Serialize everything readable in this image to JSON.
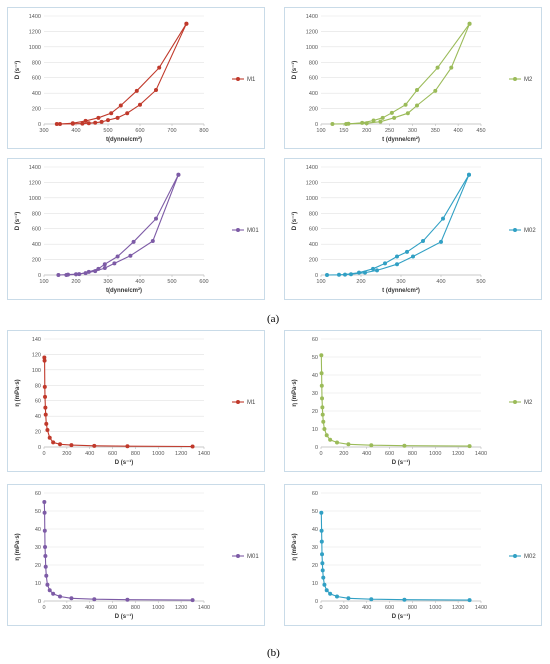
{
  "figure": {
    "label_a": "(a)",
    "label_b": "(b)"
  },
  "chart_data": [
    {
      "type": "line",
      "color": "#c0392b",
      "xlabel": "t(dynne/cm²)",
      "ylabel": "D (s⁻¹)",
      "xlim": [
        300,
        800
      ],
      "ylim": [
        0,
        1400
      ],
      "xticks": [
        300,
        400,
        500,
        600,
        700,
        800
      ],
      "yticks": [
        0,
        200,
        400,
        600,
        800,
        1000,
        1200,
        1400
      ],
      "grid": true,
      "legend": "right",
      "series": [
        {
          "name": "M1",
          "x": [
            340,
            390,
            420,
            440,
            460,
            480,
            500,
            530,
            560,
            600,
            650,
            745
          ],
          "y": [
            0,
            3,
            5,
            10,
            17,
            27,
            50,
            80,
            140,
            250,
            440,
            1300
          ]
        },
        {
          "x": [
            745,
            660,
            590,
            540,
            510,
            470,
            430,
            390,
            350
          ],
          "y": [
            1300,
            730,
            430,
            240,
            140,
            80,
            40,
            10,
            0
          ]
        }
      ]
    },
    {
      "type": "line",
      "color": "#9bbb59",
      "xlabel": "t (dynne/cm²)",
      "ylabel": "D (s⁻¹)",
      "xlim": [
        100,
        450
      ],
      "ylim": [
        0,
        1400
      ],
      "xticks": [
        100,
        150,
        200,
        250,
        300,
        350,
        400,
        450
      ],
      "yticks": [
        0,
        200,
        400,
        600,
        800,
        1000,
        1200,
        1400
      ],
      "grid": true,
      "legend": "right",
      "series": [
        {
          "name": "M2",
          "x": [
            125,
            160,
            200,
            230,
            260,
            290,
            310,
            350,
            385,
            425
          ],
          "y": [
            0,
            3,
            10,
            30,
            80,
            140,
            240,
            430,
            730,
            1300
          ]
        },
        {
          "x": [
            425,
            355,
            310,
            285,
            255,
            235,
            215,
            190,
            155
          ],
          "y": [
            1300,
            730,
            440,
            250,
            145,
            80,
            45,
            15,
            0
          ]
        }
      ]
    },
    {
      "type": "line",
      "color": "#7d5ba6",
      "xlabel": "t(dynne/cm²)",
      "ylabel": "D (s⁻¹)",
      "xlim": [
        100,
        600
      ],
      "ylim": [
        0,
        1400
      ],
      "xticks": [
        100,
        200,
        300,
        400,
        500,
        600
      ],
      "yticks": [
        0,
        200,
        400,
        600,
        800,
        1000,
        1200,
        1400
      ],
      "grid": true,
      "legend": "right",
      "series": [
        {
          "name": "M01",
          "x": [
            145,
            175,
            200,
            230,
            260,
            290,
            320,
            370,
            440,
            520
          ],
          "y": [
            0,
            5,
            10,
            25,
            50,
            90,
            150,
            250,
            440,
            1300
          ]
        },
        {
          "x": [
            520,
            450,
            380,
            330,
            290,
            270,
            240,
            210,
            170
          ],
          "y": [
            1300,
            730,
            430,
            240,
            140,
            80,
            40,
            12,
            0
          ]
        }
      ]
    },
    {
      "type": "line",
      "color": "#31a0c4",
      "xlabel": "t (dynne/cm²)",
      "ylabel": "D (s⁻¹)",
      "xlim": [
        100,
        500
      ],
      "ylim": [
        0,
        1400
      ],
      "xticks": [
        100,
        200,
        300,
        400,
        500
      ],
      "yticks": [
        0,
        200,
        400,
        600,
        800,
        1000,
        1200,
        1400
      ],
      "grid": true,
      "legend": "right",
      "series": [
        {
          "name": "M02",
          "x": [
            115,
            145,
            175,
            210,
            240,
            290,
            330,
            400,
            470
          ],
          "y": [
            0,
            3,
            10,
            30,
            60,
            140,
            240,
            430,
            1300
          ]
        },
        {
          "x": [
            470,
            405,
            355,
            315,
            290,
            260,
            230,
            195,
            160
          ],
          "y": [
            1300,
            730,
            440,
            300,
            240,
            150,
            80,
            30,
            5
          ]
        }
      ]
    },
    {
      "type": "line",
      "color": "#c0392b",
      "xlabel": "D (s⁻¹)",
      "ylabel": "η (mPa·s)",
      "xlim": [
        0,
        1400
      ],
      "ylim": [
        0,
        140
      ],
      "xticks": [
        0,
        200,
        400,
        600,
        800,
        1000,
        1200,
        1400
      ],
      "yticks": [
        0,
        20,
        40,
        60,
        80,
        100,
        120,
        140
      ],
      "grid": true,
      "legend": "right",
      "series": [
        {
          "name": "M1",
          "x": [
            3,
            5,
            7,
            9,
            12,
            15,
            20,
            30,
            50,
            80,
            140,
            240,
            440,
            730,
            1300
          ],
          "y": [
            116,
            112,
            78,
            65,
            51,
            42,
            30,
            22,
            12,
            6,
            3.5,
            2.5,
            1.5,
            1,
            0.7
          ]
        }
      ]
    },
    {
      "type": "line",
      "color": "#9bbb59",
      "xlabel": "D (s⁻¹)",
      "ylabel": "η (mPa·s)",
      "xlim": [
        0,
        1400
      ],
      "ylim": [
        0,
        60
      ],
      "xticks": [
        0,
        200,
        400,
        600,
        800,
        1000,
        1200,
        1400
      ],
      "yticks": [
        0,
        10,
        20,
        30,
        40,
        50,
        60
      ],
      "grid": true,
      "legend": "right",
      "series": [
        {
          "name": "M2",
          "x": [
            3,
            5,
            7,
            9,
            12,
            15,
            20,
            30,
            50,
            80,
            140,
            240,
            440,
            730,
            1300
          ],
          "y": [
            51,
            41,
            34,
            27,
            22,
            18,
            14,
            10,
            6.5,
            4,
            2.5,
            1.5,
            1,
            0.7,
            0.5
          ]
        }
      ]
    },
    {
      "type": "line",
      "color": "#7d5ba6",
      "xlabel": "D (s⁻¹)",
      "ylabel": "η (mPa·s)",
      "xlim": [
        0,
        1400
      ],
      "ylim": [
        0,
        60
      ],
      "xticks": [
        0,
        200,
        400,
        600,
        800,
        1000,
        1200,
        1400
      ],
      "yticks": [
        0,
        10,
        20,
        30,
        40,
        50,
        60
      ],
      "grid": true,
      "legend": "right",
      "series": [
        {
          "name": "M01",
          "x": [
            3,
            5,
            7,
            9,
            12,
            15,
            20,
            30,
            50,
            80,
            140,
            240,
            440,
            730,
            1300
          ],
          "y": [
            55,
            49,
            39,
            30,
            25,
            19,
            14,
            9,
            6,
            4,
            2.5,
            1.5,
            1,
            0.7,
            0.5
          ]
        }
      ]
    },
    {
      "type": "line",
      "color": "#31a0c4",
      "xlabel": "D (s⁻¹)",
      "ylabel": "η (mPa·s)",
      "xlim": [
        0,
        1400
      ],
      "ylim": [
        0,
        60
      ],
      "xticks": [
        0,
        200,
        400,
        600,
        800,
        1000,
        1200,
        1400
      ],
      "yticks": [
        0,
        10,
        20,
        30,
        40,
        50,
        60
      ],
      "grid": true,
      "legend": "right",
      "series": [
        {
          "name": "M02",
          "x": [
            3,
            5,
            7,
            9,
            12,
            15,
            20,
            30,
            50,
            80,
            140,
            240,
            440,
            730,
            1300
          ],
          "y": [
            49,
            39,
            33,
            26,
            21,
            17,
            13,
            9,
            6,
            4,
            2.5,
            1.5,
            1,
            0.7,
            0.5
          ]
        }
      ]
    }
  ]
}
